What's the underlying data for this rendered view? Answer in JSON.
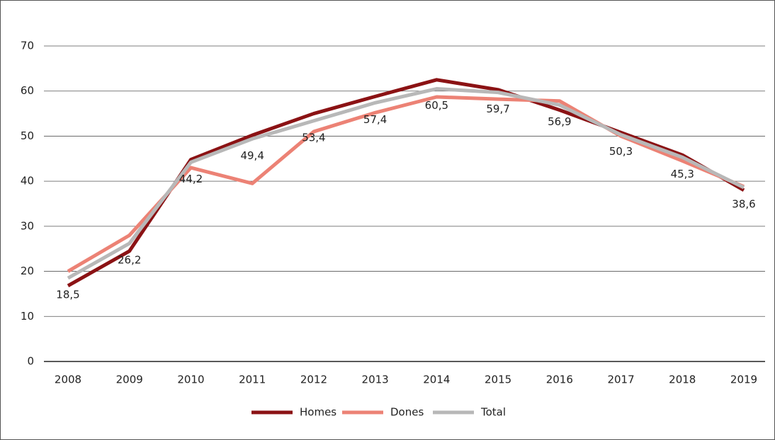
{
  "chart_data": {
    "type": "line",
    "categories": [
      "2008",
      "2009",
      "2010",
      "2011",
      "2012",
      "2013",
      "2014",
      "2015",
      "2016",
      "2017",
      "2018",
      "2019"
    ],
    "series": [
      {
        "name": "Homes",
        "color": "#8b1214",
        "values": [
          16.8,
          24.5,
          44.8,
          50.2,
          55,
          58.8,
          62.5,
          60.3,
          55.8,
          50.8,
          45.8,
          38
        ]
      },
      {
        "name": "Dones",
        "color": "#ec8275",
        "values": [
          20,
          28,
          43,
          39.5,
          51,
          55.2,
          58.7,
          58.2,
          57.8,
          50,
          44.5,
          38.8
        ]
      },
      {
        "name": "Total",
        "color": "#b8b8b8",
        "values": [
          18.5,
          26.2,
          44.2,
          49.4,
          53.4,
          57.4,
          60.5,
          59.7,
          56.9,
          50.3,
          45.3,
          38.6
        ],
        "value_labels": [
          "18,5",
          "26,2",
          "44,2",
          "49,4",
          "53,4",
          "57,4",
          "60,5",
          "59,7",
          "56,9",
          "50,3",
          "45,3",
          "38,6"
        ]
      }
    ],
    "ylim": [
      0,
      70
    ],
    "yticks": [
      0,
      10,
      20,
      30,
      40,
      50,
      60,
      70
    ],
    "grid": true,
    "legend": "bottom"
  }
}
